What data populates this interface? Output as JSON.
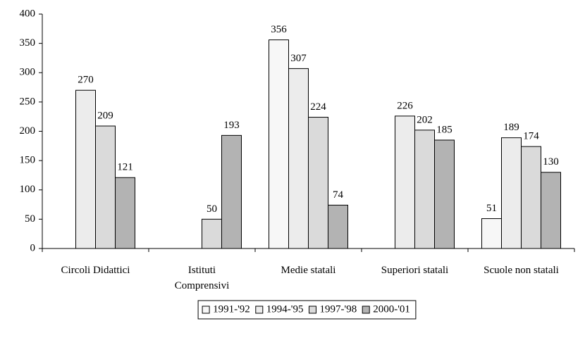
{
  "chart_data": {
    "type": "bar",
    "categories": [
      "Circoli Didattici",
      "Istituti\nComprensivi",
      "Medie statali",
      "Superiori statali",
      "Scuole non statali"
    ],
    "series": [
      {
        "name": "1991-'92",
        "color": "#f7f7f7",
        "values": [
          null,
          null,
          356,
          null,
          51
        ]
      },
      {
        "name": "1994-'95",
        "color": "#ececec",
        "values": [
          270,
          null,
          307,
          226,
          189
        ]
      },
      {
        "name": "1997-'98",
        "color": "#dadada",
        "values": [
          209,
          50,
          224,
          202,
          174
        ]
      },
      {
        "name": "2000-'01",
        "color": "#b3b3b3",
        "values": [
          121,
          193,
          74,
          185,
          130
        ]
      }
    ],
    "ylim": [
      0,
      400
    ],
    "yticks": [
      0,
      50,
      100,
      150,
      200,
      250,
      300,
      350,
      400
    ],
    "grid": false,
    "legend": "bottom"
  }
}
